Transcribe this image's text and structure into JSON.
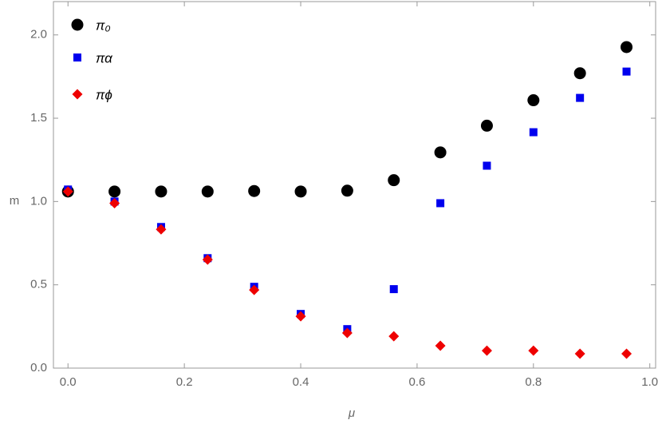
{
  "chart_data": {
    "type": "scatter",
    "x_label": "μ",
    "y_label": "m",
    "x": [
      0,
      0.08,
      0.16,
      0.24,
      0.32,
      0.4,
      0.48,
      0.56,
      0.64,
      0.72,
      0.8,
      0.88,
      0.96
    ],
    "series": [
      {
        "name": "π₀",
        "color": "#000000",
        "marker": "circle",
        "values": [
          1.06,
          1.06,
          1.06,
          1.06,
          1.063,
          1.06,
          1.065,
          1.128,
          1.295,
          1.455,
          1.608,
          1.77,
          1.927
        ]
      },
      {
        "name": "πα",
        "color": "#0000ee",
        "marker": "square",
        "values": [
          1.072,
          1.0,
          0.847,
          0.66,
          0.488,
          0.325,
          0.234,
          0.474,
          0.99,
          1.215,
          1.416,
          1.622,
          1.78
        ]
      },
      {
        "name": "πϕ",
        "color": "#ee0000",
        "marker": "diamond",
        "values": [
          1.06,
          0.99,
          0.833,
          0.651,
          0.469,
          0.311,
          0.211,
          0.191,
          0.134,
          0.105,
          0.105,
          0.086,
          0.086
        ]
      }
    ],
    "xlim": [
      -0.025,
      1.01
    ],
    "ylim": [
      0,
      2.2
    ],
    "xticks": [
      {
        "value": 0,
        "label": "0.0"
      },
      0.2,
      0.4,
      0.6,
      0.8,
      {
        "value": 1,
        "label": "1.0"
      }
    ],
    "yticks": [
      {
        "value": 0,
        "label": "0.0"
      },
      0.5,
      {
        "value": 1,
        "label": "1.0"
      },
      1.5,
      {
        "value": 2,
        "label": "2.0"
      }
    ],
    "legend": "top-left"
  }
}
